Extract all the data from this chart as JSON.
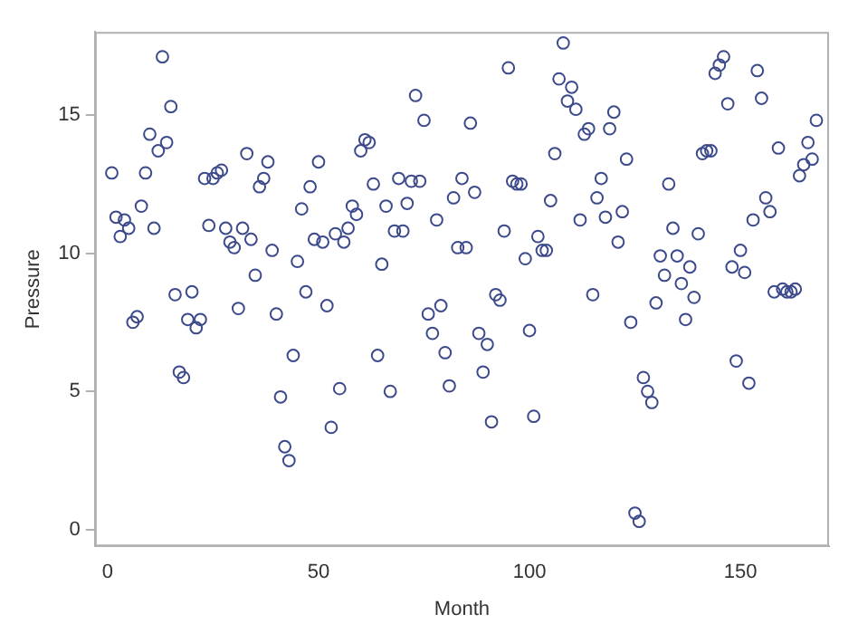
{
  "chart_data": {
    "type": "scatter",
    "xlabel": "Month",
    "ylabel": "Pressure",
    "x": [
      1,
      2,
      3,
      4,
      5,
      6,
      7,
      8,
      9,
      10,
      11,
      12,
      13,
      14,
      15,
      16,
      17,
      18,
      19,
      20,
      21,
      22,
      23,
      24,
      25,
      26,
      27,
      28,
      29,
      30,
      31,
      32,
      33,
      34,
      35,
      36,
      37,
      38,
      39,
      40,
      41,
      42,
      43,
      44,
      45,
      46,
      47,
      48,
      49,
      50,
      51,
      52,
      53,
      54,
      55,
      56,
      57,
      58,
      59,
      60,
      61,
      62,
      63,
      64,
      65,
      66,
      67,
      68,
      69,
      70,
      71,
      72,
      73,
      74,
      75,
      76,
      77,
      78,
      79,
      80,
      81,
      82,
      83,
      84,
      85,
      86,
      87,
      88,
      89,
      90,
      91,
      92,
      93,
      94,
      95,
      96,
      97,
      98,
      99,
      100,
      101,
      102,
      103,
      104,
      105,
      106,
      107,
      108,
      109,
      110,
      111,
      112,
      113,
      114,
      115,
      116,
      117,
      118,
      119,
      120,
      121,
      122,
      123,
      124,
      125,
      126,
      127,
      128,
      129,
      130,
      131,
      132,
      133,
      134,
      135,
      136,
      137,
      138,
      139,
      140,
      141,
      142,
      143,
      144,
      145,
      146,
      147,
      148,
      149,
      150,
      151,
      152,
      153,
      154,
      155,
      156,
      157,
      158,
      159,
      160,
      161,
      162,
      163,
      164,
      165,
      166,
      167,
      168
    ],
    "series": [
      {
        "color": "#3c4a8c",
        "values": [
          12.9,
          11.3,
          10.6,
          11.2,
          10.9,
          7.5,
          7.7,
          11.7,
          12.9,
          14.3,
          10.9,
          13.7,
          17.1,
          14.0,
          15.3,
          8.5,
          5.7,
          5.5,
          7.6,
          8.6,
          7.3,
          7.6,
          12.7,
          11.0,
          12.7,
          12.9,
          13.0,
          10.9,
          10.4,
          10.2,
          8.0,
          10.9,
          13.6,
          10.5,
          9.2,
          12.4,
          12.7,
          13.3,
          10.1,
          7.8,
          4.8,
          3.0,
          2.5,
          6.3,
          9.7,
          11.6,
          8.6,
          12.4,
          10.5,
          13.3,
          10.4,
          8.1,
          3.7,
          10.7,
          5.1,
          10.4,
          10.9,
          11.7,
          11.4,
          13.7,
          14.1,
          14.0,
          12.5,
          6.3,
          9.6,
          11.7,
          5.0,
          10.8,
          12.7,
          10.8,
          11.8,
          12.6,
          15.7,
          12.6,
          14.8,
          7.8,
          7.1,
          11.2,
          8.1,
          6.4,
          5.2,
          12.0,
          10.2,
          12.7,
          10.2,
          14.7,
          12.2,
          7.1,
          5.7,
          6.7,
          3.9,
          8.5,
          8.3,
          10.8,
          16.7,
          12.6,
          12.5,
          12.5,
          9.8,
          7.2,
          4.1,
          10.6,
          10.1,
          10.1,
          11.9,
          13.6,
          16.3,
          17.6,
          15.5,
          16.0,
          15.2,
          11.2,
          14.3,
          14.5,
          8.5,
          12.0,
          12.7,
          11.3,
          14.5,
          15.1,
          10.4,
          11.5,
          13.4,
          7.5,
          0.6,
          0.3,
          5.5,
          5.0,
          4.6,
          8.2,
          9.9,
          9.2,
          12.5,
          10.9,
          9.9,
          8.9,
          7.6,
          9.5,
          8.4,
          10.7,
          13.6,
          13.7,
          13.7,
          16.5,
          16.8,
          17.1,
          15.4,
          9.5,
          6.1,
          10.1,
          9.3,
          5.3,
          11.2,
          16.6,
          15.6,
          12.0,
          11.5,
          8.6,
          13.8,
          8.7,
          8.6,
          8.6,
          8.7,
          12.8,
          13.2,
          14.0,
          13.4,
          14.8
        ]
      }
    ],
    "xlim": [
      -3,
      171
    ],
    "xticks": [
      0,
      50,
      100,
      150
    ],
    "ylim": [
      -0.6,
      18
    ],
    "yticks": [
      0,
      5,
      10,
      15
    ],
    "grid": false,
    "legend": false,
    "marker": "circle"
  }
}
